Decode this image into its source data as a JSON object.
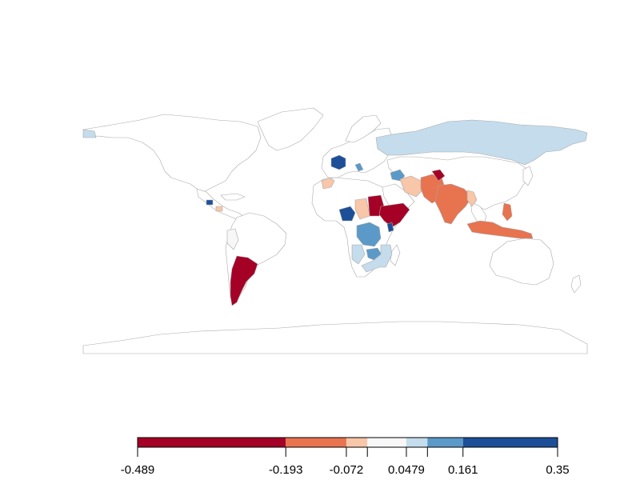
{
  "legend": {
    "breaks": [
      "-0.489",
      "-0.193",
      "-0.072",
      "0.0479",
      "0.161",
      "0.35"
    ],
    "bin_values": [
      -0.489,
      -0.193,
      -0.072,
      -0.03,
      0.0479,
      0.09,
      0.161,
      0.35
    ],
    "colors": [
      "#a50026",
      "#e8734f",
      "#f8c6a8",
      "#f7f7f7",
      "#c4dcec",
      "#5b9ac8",
      "#1c4f98"
    ]
  },
  "map": {
    "background_land_color": "#ffffff",
    "border_color": "#a9a9a9",
    "highlighted_regions": [
      {
        "name": "Russia",
        "color": "#c4dcec"
      },
      {
        "name": "France",
        "color": "#1c4f98"
      },
      {
        "name": "Spain",
        "color": "#f8c6a8"
      },
      {
        "name": "Italy",
        "color": "#5b9ac8"
      },
      {
        "name": "Sudan",
        "color": "#a50026"
      },
      {
        "name": "Ethiopia",
        "color": "#a50026"
      },
      {
        "name": "Somalia",
        "color": "#a50026"
      },
      {
        "name": "Chad",
        "color": "#f8c6a8"
      },
      {
        "name": "Nigeria",
        "color": "#1c4f98"
      },
      {
        "name": "Kenya",
        "color": "#1c4f98"
      },
      {
        "name": "DR Congo",
        "color": "#5b9ac8"
      },
      {
        "name": "Angola",
        "color": "#c4dcec"
      },
      {
        "name": "Zambia",
        "color": "#5b9ac8"
      },
      {
        "name": "Mozambique",
        "color": "#c4dcec"
      },
      {
        "name": "Zimbabwe",
        "color": "#5b9ac8"
      },
      {
        "name": "Iran",
        "color": "#f8c6a8"
      },
      {
        "name": "Turkey",
        "color": "#5b9ac8"
      },
      {
        "name": "Afghanistan",
        "color": "#e8734f"
      },
      {
        "name": "Pakistan",
        "color": "#e8734f"
      },
      {
        "name": "India",
        "color": "#e8734f"
      },
      {
        "name": "Kashmir",
        "color": "#a50026"
      },
      {
        "name": "Myanmar",
        "color": "#f8c6a8"
      },
      {
        "name": "Philippines",
        "color": "#e8734f"
      },
      {
        "name": "Malaysia",
        "color": "#e8734f"
      },
      {
        "name": "Indonesia",
        "color": "#e8734f"
      },
      {
        "name": "Argentina",
        "color": "#a50026"
      },
      {
        "name": "Chile",
        "color": "#a50026"
      },
      {
        "name": "Peru",
        "color": "#f7f7f7"
      },
      {
        "name": "Guatemala",
        "color": "#1c4f98"
      },
      {
        "name": "Nicaragua",
        "color": "#f8c6a8"
      }
    ]
  }
}
